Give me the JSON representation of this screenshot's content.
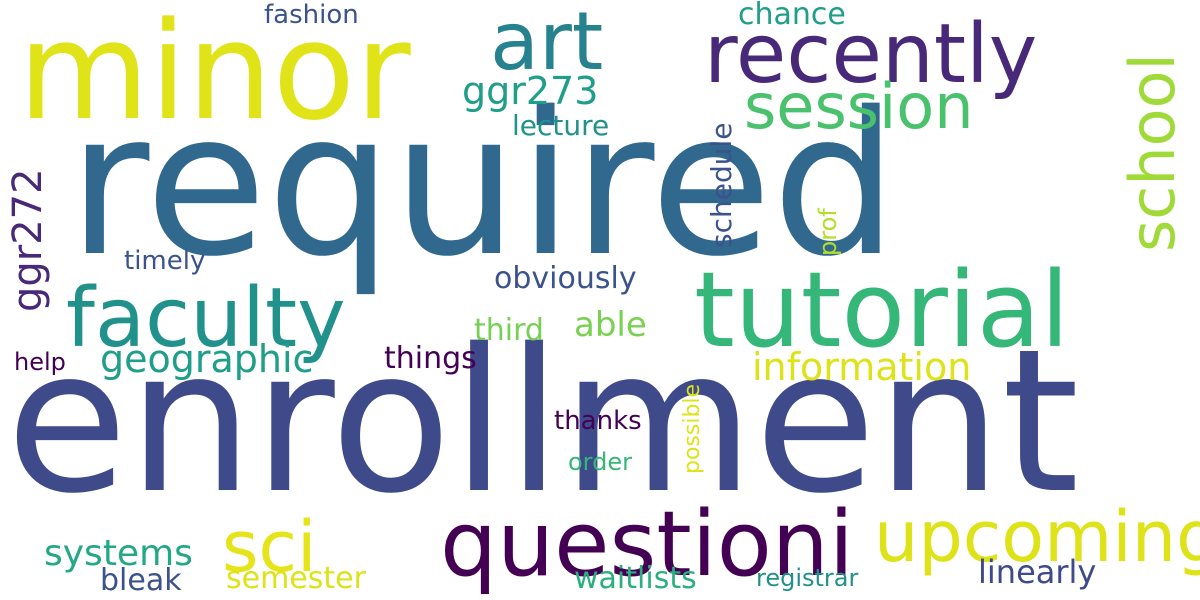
{
  "words": {
    "required": {
      "text": "required",
      "color": "#31688e"
    },
    "enrollment": {
      "text": "enrollment",
      "color": "#3e4a89"
    },
    "minor": {
      "text": "minor",
      "color": "#dfe318"
    },
    "tutorial": {
      "text": "tutorial",
      "color": "#35b779"
    },
    "recently": {
      "text": "recently",
      "color": "#482878"
    },
    "faculty": {
      "text": "faculty",
      "color": "#21918c"
    },
    "questioni": {
      "text": "questioni",
      "color": "#440154"
    },
    "art": {
      "text": "art",
      "color": "#26828e"
    },
    "session": {
      "text": "session",
      "color": "#4ac16d"
    },
    "school": {
      "text": "school",
      "color": "#a0da39"
    },
    "upcoming": {
      "text": "upcoming",
      "color": "#dde318"
    },
    "sci": {
      "text": "sci",
      "color": "#e5e419"
    },
    "ggr273": {
      "text": "ggr273",
      "color": "#1f9e89"
    },
    "ggr272": {
      "text": "ggr272",
      "color": "#482878"
    },
    "geographic": {
      "text": "geographic",
      "color": "#1f9e89"
    },
    "information": {
      "text": "information",
      "color": "#dde318"
    },
    "lecture": {
      "text": "lecture",
      "color": "#21918c"
    },
    "schedule": {
      "text": "schedule",
      "color": "#3b528b"
    },
    "obviously": {
      "text": "obviously",
      "color": "#3b528b"
    },
    "able": {
      "text": "able",
      "color": "#7ad151"
    },
    "third": {
      "text": "third",
      "color": "#75d054"
    },
    "things": {
      "text": "things",
      "color": "#440154"
    },
    "systems": {
      "text": "systems",
      "color": "#22a884"
    },
    "linearly": {
      "text": "linearly",
      "color": "#3e4a89"
    },
    "waitlists": {
      "text": "waitlists",
      "color": "#2ab07f"
    },
    "semester": {
      "text": "semester",
      "color": "#dde318"
    },
    "bleak": {
      "text": "bleak",
      "color": "#3b528b"
    },
    "registrar": {
      "text": "registrar",
      "color": "#21918c"
    },
    "chance": {
      "text": "chance",
      "color": "#1f9e89"
    },
    "fashion": {
      "text": "fashion",
      "color": "#3b528b"
    },
    "timely": {
      "text": "timely",
      "color": "#3b528b"
    },
    "help": {
      "text": "help",
      "color": "#440154"
    },
    "thanks": {
      "text": "thanks",
      "color": "#440154"
    },
    "order": {
      "text": "order",
      "color": "#35b779"
    },
    "prof": {
      "text": "prof",
      "color": "#b5de2b"
    },
    "possible": {
      "text": "possible",
      "color": "#dde318"
    }
  }
}
